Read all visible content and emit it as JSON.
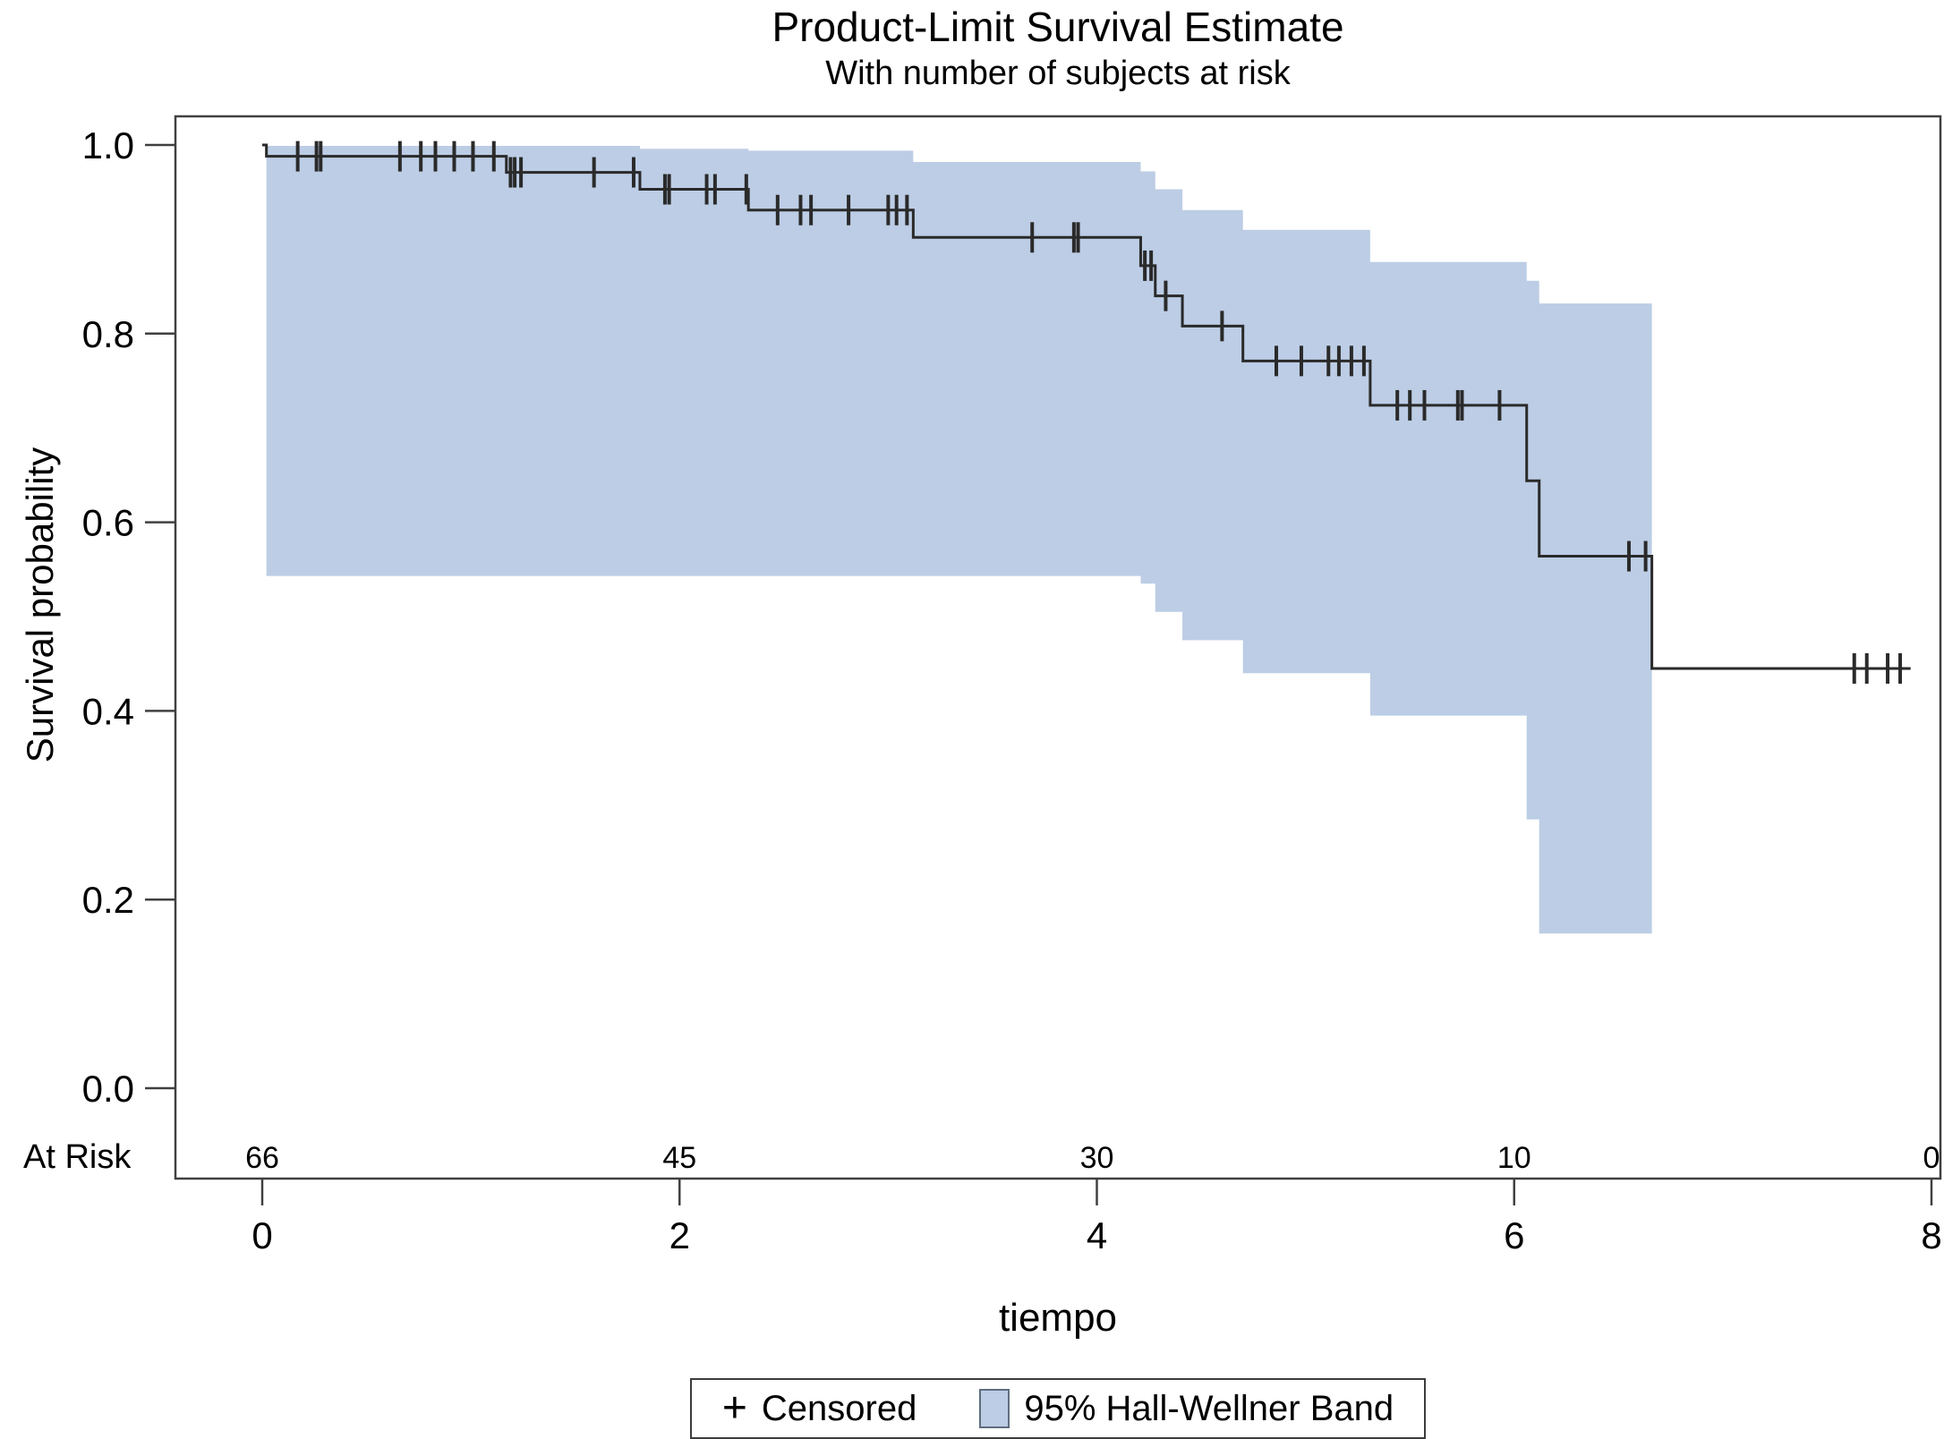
{
  "chart_data": {
    "type": "line",
    "subtype": "kaplan-meier-step",
    "title": "Product-Limit Survival Estimate",
    "subtitle": "With number of subjects at risk",
    "xlabel": "tiempo",
    "ylabel": "Survival probability",
    "xlim": [
      0,
      8
    ],
    "ylim": [
      0.0,
      1.0
    ],
    "xticks": [
      "0",
      "2",
      "4",
      "6",
      "8"
    ],
    "xtick_values": [
      0,
      2,
      4,
      6,
      8
    ],
    "yticks": [
      "0.0",
      "0.2",
      "0.4",
      "0.6",
      "0.8",
      "1.0"
    ],
    "ytick_values": [
      0.0,
      0.2,
      0.4,
      0.6,
      0.8,
      1.0
    ],
    "grid": "off",
    "at_risk": {
      "label": "At Risk",
      "times": [
        0,
        2,
        4,
        6,
        8
      ],
      "counts": [
        "66",
        "45",
        "30",
        "10",
        "0"
      ]
    },
    "curve": {
      "color": "#2a2a2a",
      "start": [
        0,
        1.0
      ],
      "steps": [
        [
          0.02,
          0.988
        ],
        [
          1.17,
          0.971
        ],
        [
          1.81,
          0.953
        ],
        [
          2.33,
          0.931
        ],
        [
          3.12,
          0.902
        ],
        [
          4.21,
          0.872
        ],
        [
          4.28,
          0.84
        ],
        [
          4.41,
          0.808
        ],
        [
          4.7,
          0.771
        ],
        [
          5.31,
          0.724
        ],
        [
          6.06,
          0.644
        ],
        [
          6.12,
          0.564
        ],
        [
          6.66,
          0.445
        ]
      ],
      "end_time": 7.9
    },
    "censor_marks": [
      [
        0.17,
        0.988
      ],
      [
        0.26,
        0.988
      ],
      [
        0.28,
        0.988
      ],
      [
        0.66,
        0.988
      ],
      [
        0.76,
        0.988
      ],
      [
        0.83,
        0.988
      ],
      [
        0.92,
        0.988
      ],
      [
        1.01,
        0.988
      ],
      [
        1.11,
        0.988
      ],
      [
        1.19,
        0.971
      ],
      [
        1.21,
        0.971
      ],
      [
        1.24,
        0.971
      ],
      [
        1.59,
        0.971
      ],
      [
        1.78,
        0.971
      ],
      [
        1.93,
        0.953
      ],
      [
        1.95,
        0.953
      ],
      [
        2.13,
        0.953
      ],
      [
        2.17,
        0.953
      ],
      [
        2.32,
        0.953
      ],
      [
        2.47,
        0.931
      ],
      [
        2.58,
        0.931
      ],
      [
        2.63,
        0.931
      ],
      [
        2.81,
        0.931
      ],
      [
        3.0,
        0.931
      ],
      [
        3.04,
        0.931
      ],
      [
        3.09,
        0.931
      ],
      [
        3.69,
        0.902
      ],
      [
        3.89,
        0.902
      ],
      [
        3.91,
        0.902
      ],
      [
        4.23,
        0.872
      ],
      [
        4.26,
        0.872
      ],
      [
        4.33,
        0.84
      ],
      [
        4.6,
        0.808
      ],
      [
        4.86,
        0.771
      ],
      [
        4.98,
        0.771
      ],
      [
        5.11,
        0.771
      ],
      [
        5.16,
        0.771
      ],
      [
        5.22,
        0.771
      ],
      [
        5.28,
        0.771
      ],
      [
        5.44,
        0.724
      ],
      [
        5.5,
        0.724
      ],
      [
        5.57,
        0.724
      ],
      [
        5.73,
        0.724
      ],
      [
        5.75,
        0.724
      ],
      [
        5.93,
        0.724
      ],
      [
        6.55,
        0.564
      ],
      [
        6.63,
        0.564
      ],
      [
        7.63,
        0.445
      ],
      [
        7.69,
        0.445
      ],
      [
        7.79,
        0.445
      ],
      [
        7.85,
        0.445
      ]
    ],
    "band": {
      "color": "#bccde5",
      "end_time": 6.66,
      "upper_steps": [
        [
          0.02,
          0.999
        ],
        [
          1.81,
          0.996
        ],
        [
          2.33,
          0.994
        ],
        [
          3.12,
          0.982
        ],
        [
          4.21,
          0.972
        ],
        [
          4.28,
          0.953
        ],
        [
          4.41,
          0.931
        ],
        [
          4.7,
          0.91
        ],
        [
          5.31,
          0.876
        ],
        [
          6.06,
          0.856
        ],
        [
          6.12,
          0.832
        ]
      ],
      "lower_steps": [
        [
          0.02,
          0.543
        ],
        [
          4.21,
          0.535
        ],
        [
          4.28,
          0.505
        ],
        [
          4.41,
          0.475
        ],
        [
          4.7,
          0.44
        ],
        [
          5.31,
          0.395
        ],
        [
          6.06,
          0.285
        ],
        [
          6.12,
          0.164
        ]
      ]
    },
    "legend": {
      "censored_symbol": "+",
      "censored_label": "Censored",
      "band_label": "95% Hall-Wellner Band"
    }
  }
}
